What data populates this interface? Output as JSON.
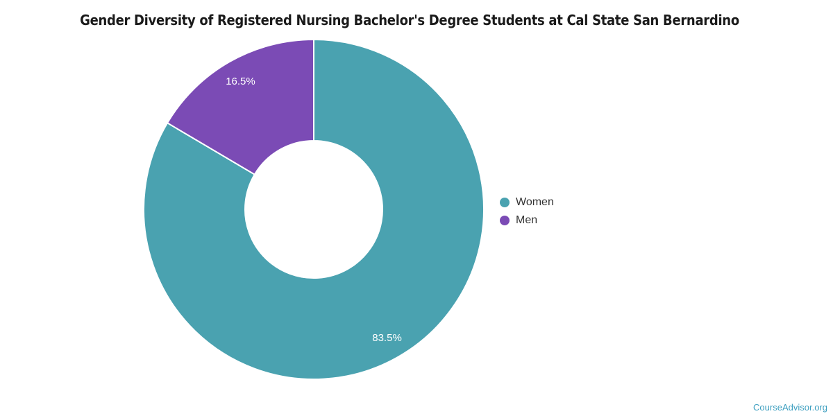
{
  "title": "Gender Diversity of Registered Nursing Bachelor's Degree Students at Cal State San Bernardino",
  "watermark": {
    "label": "CourseAdvisor.org",
    "color": "#3d9fc0"
  },
  "chart_data": {
    "type": "pie",
    "subtype": "donut",
    "title": "Gender Diversity of Registered Nursing Bachelor's Degree Students at Cal State San Bernardino",
    "categories": [
      "Women",
      "Men"
    ],
    "values": [
      83.5,
      16.5
    ],
    "slice_labels": [
      "83.5%",
      "16.5%"
    ],
    "colors": [
      "#4aa2b0",
      "#7b4bb5"
    ],
    "legend_position": "right",
    "start_angle_deg": 0,
    "direction": "clockwise",
    "center": [
      452,
      302
    ],
    "outer_radius": 245,
    "inner_radius": 99,
    "label_radius": 213,
    "label_color": "#ffffff",
    "slice_border_color": "#ffffff",
    "slice_border_width": 2
  },
  "legend": {
    "items": [
      {
        "label": "Women",
        "color": "#4aa2b0"
      },
      {
        "label": "Men",
        "color": "#7b4bb5"
      }
    ]
  }
}
